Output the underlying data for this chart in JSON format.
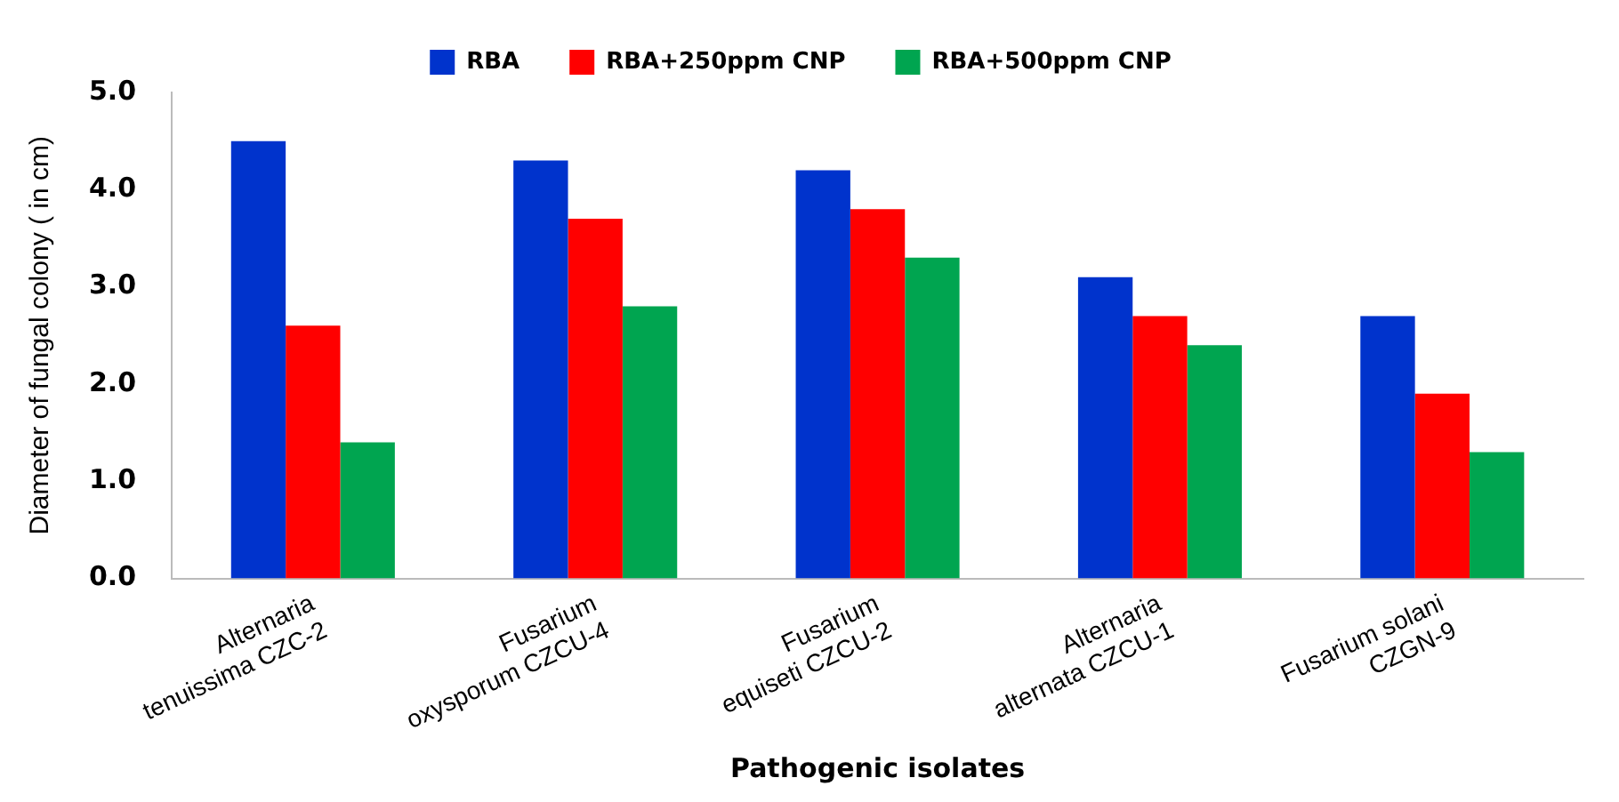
{
  "chart_data": {
    "type": "bar",
    "xlabel": "Pathogenic isolates",
    "ylabel": "Diameter of fungal colony ( in cm)",
    "categories": [
      "Alternaria tenuissima CZC-2",
      "Fusarium oxysporum CZCU-4",
      "Fusarium equiseti CZCU-2",
      "Alternaria alternata CZCU-1",
      "Fusarium solani CZGN-9"
    ],
    "series": [
      {
        "name": "RBA",
        "color": "#0033cc",
        "values": [
          4.5,
          4.3,
          4.2,
          3.1,
          2.7
        ]
      },
      {
        "name": "RBA+250ppm CNP",
        "color": "#ff0000",
        "values": [
          2.6,
          3.7,
          3.8,
          2.7,
          1.9
        ]
      },
      {
        "name": "RBA+500ppm CNP",
        "color": "#00a550",
        "values": [
          1.4,
          2.8,
          3.3,
          2.4,
          1.3
        ]
      }
    ],
    "ylim": [
      0,
      5
    ],
    "yticks": [
      {
        "value": 0,
        "label": "0.0"
      },
      {
        "value": 1,
        "label": "1.0"
      },
      {
        "value": 2,
        "label": "2.0"
      },
      {
        "value": 3,
        "label": "3.0"
      },
      {
        "value": 4,
        "label": "4.0"
      },
      {
        "value": 5,
        "label": "5.0"
      }
    ],
    "grid": false,
    "legend": "top"
  }
}
